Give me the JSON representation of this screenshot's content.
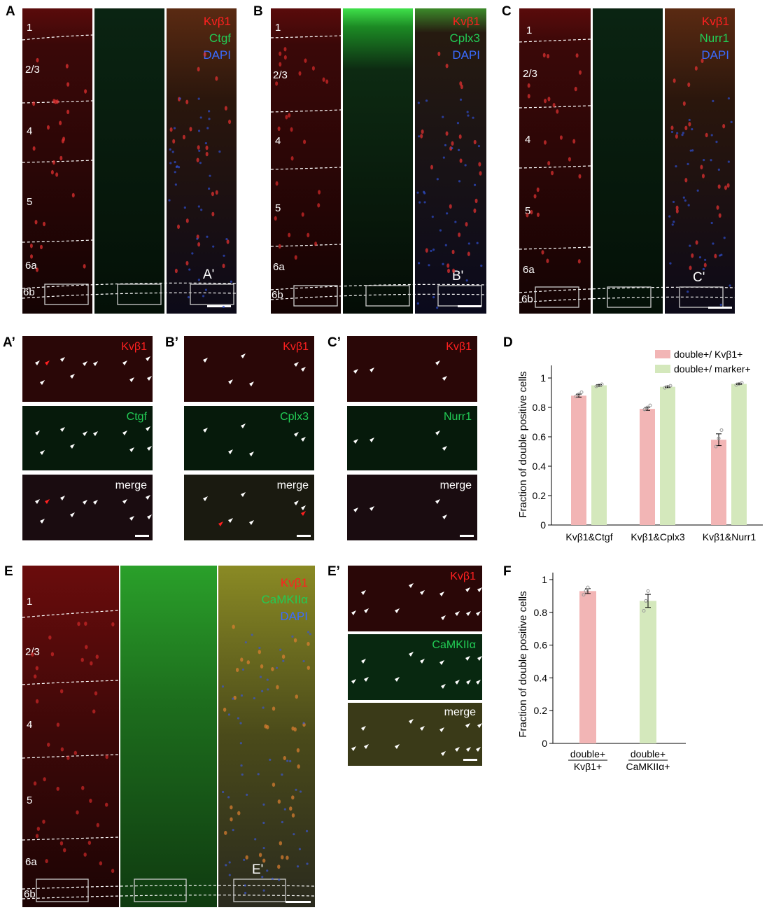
{
  "panel_letters": {
    "A": "A",
    "B": "B",
    "C": "C",
    "Ap": "A’",
    "Bp": "B’",
    "Cp": "C’",
    "D": "D",
    "E": "E",
    "Ep": "E’",
    "F": "F"
  },
  "layers": {
    "l1": "1",
    "l23": "2/3",
    "l4": "4",
    "l5": "5",
    "l6a": "6a",
    "l6b": "6b"
  },
  "stain": {
    "kvb1": "Kvβ1",
    "ctgf": "Ctgf",
    "cplx3": "Cplx3",
    "nurr1": "Nurr1",
    "camk": "CaMKIIα",
    "dapi": "DAPI",
    "merge": "merge"
  },
  "inset_tags": {
    "Ap": "A'",
    "Bp": "B'",
    "Cp": "C'",
    "Ep": "E'"
  },
  "colors": {
    "red_label": "#ff2020",
    "green_label": "#22cc55",
    "blue_label": "#3a6bff",
    "bar_red": "#f2b5b5",
    "bar_green": "#d4e8bc"
  },
  "chart_data": [
    {
      "type": "bar",
      "ylabel": "Fraction of double positive cells",
      "ylim": [
        0,
        1.0
      ],
      "yticks": [
        "0",
        "0.2",
        "0.4",
        "0.6",
        "0.8",
        "1"
      ],
      "categories": [
        "Kvβ1&Ctgf",
        "Kvβ1&Cplx3",
        "Kvβ1&Nurr1"
      ],
      "legend_position": "top-right",
      "series": [
        {
          "name": "double+/ Kvβ1+",
          "color": "#f2b5b5",
          "values": [
            0.88,
            0.79,
            0.58
          ],
          "sem": [
            0.01,
            0.01,
            0.04
          ]
        },
        {
          "name": "double+/ marker+",
          "color": "#d4e8bc",
          "values": [
            0.95,
            0.94,
            0.96
          ],
          "sem": [
            0.005,
            0.005,
            0.005
          ]
        }
      ]
    },
    {
      "type": "bar",
      "ylabel": "Fraction of double positive cells",
      "ylim": [
        0,
        1.0
      ],
      "yticks": [
        "0",
        "0.2",
        "0.4",
        "0.6",
        "0.8",
        "1"
      ],
      "categories": [
        {
          "num": "double+",
          "den": "Kvβ1+"
        },
        {
          "num": "double+",
          "den": "CaMKIIα+"
        }
      ],
      "values": [
        0.93,
        0.87
      ],
      "sem": [
        0.015,
        0.04
      ],
      "colors": [
        "#f2b5b5",
        "#d4e8bc"
      ]
    }
  ]
}
